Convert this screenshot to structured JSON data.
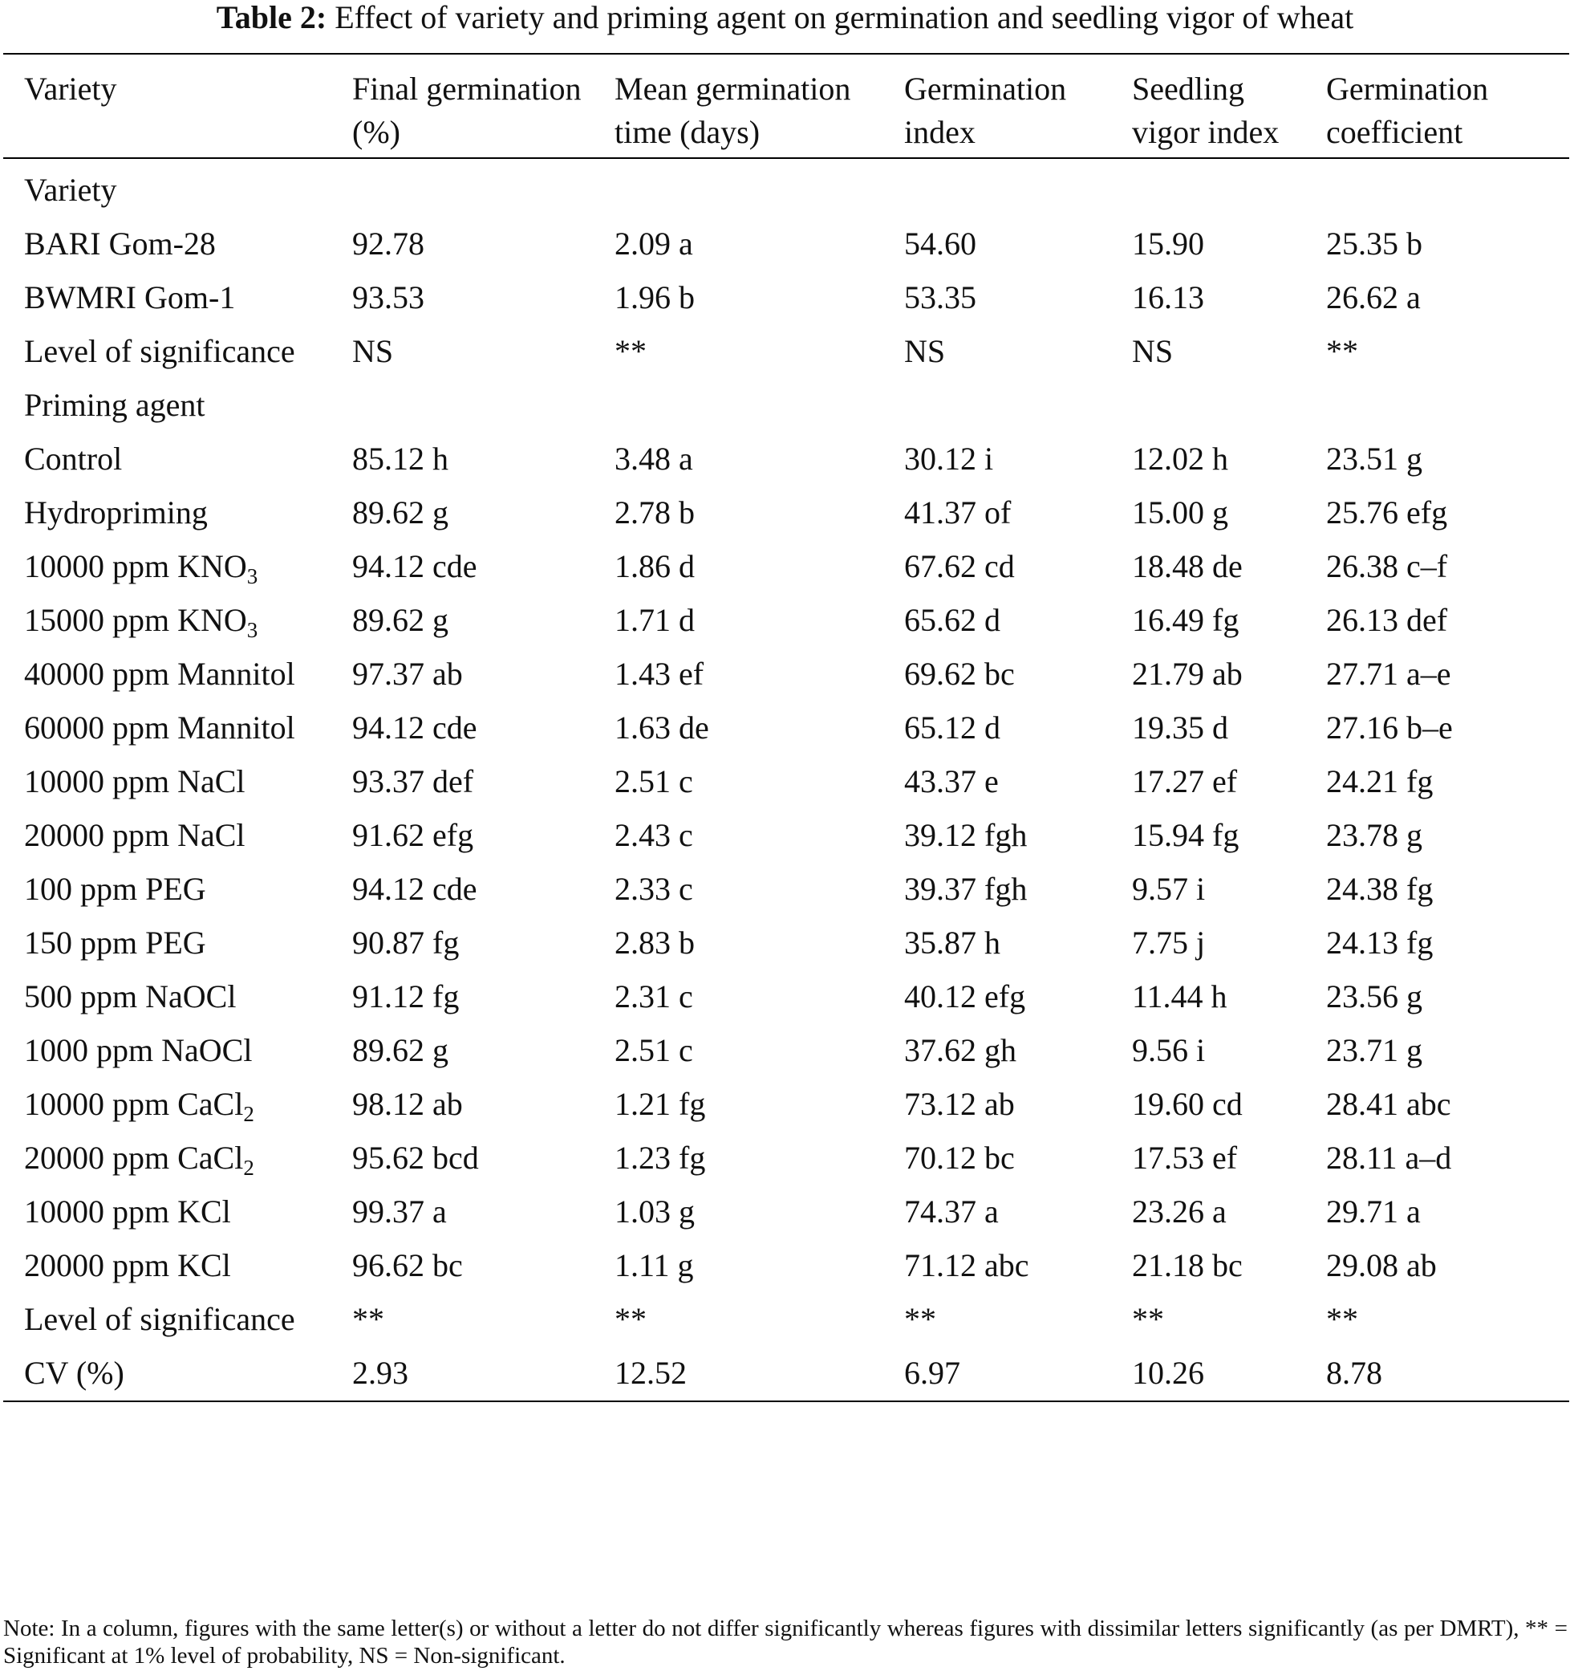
{
  "caption": {
    "label": "Table 2:",
    "text": "Effect of variety and priming agent on germination and seedling vigor of wheat"
  },
  "headers": [
    "Variety",
    "Final germination (%)",
    "Mean germination time (days)",
    "Germination index",
    "Seedling vigor index",
    "Germination coefficient"
  ],
  "rows": [
    {
      "label": "Variety",
      "values": [
        "",
        "",
        "",
        "",
        ""
      ]
    },
    {
      "label": "BARI Gom-28",
      "values": [
        "92.78",
        "2.09 a",
        "54.60",
        "15.90",
        "25.35 b"
      ]
    },
    {
      "label": "BWMRI Gom-1",
      "values": [
        "93.53",
        "1.96 b",
        "53.35",
        "16.13",
        "26.62 a"
      ]
    },
    {
      "label": "Level of significance",
      "values": [
        "NS",
        "**",
        "NS",
        "NS",
        "**"
      ]
    },
    {
      "label": "Priming agent",
      "values": [
        "",
        "",
        "",
        "",
        ""
      ]
    },
    {
      "label": "Control",
      "values": [
        "85.12 h",
        "3.48 a",
        "30.12 i",
        "12.02 h",
        "23.51 g"
      ]
    },
    {
      "label": "Hydropriming",
      "values": [
        "89.62 g",
        "2.78 b",
        "41.37 of",
        "15.00 g",
        "25.76 efg"
      ]
    },
    {
      "label": "10000 ppm KNO",
      "sub": "3",
      "values": [
        "94.12 cde",
        "1.86 d",
        "67.62 cd",
        "18.48 de",
        "26.38 c–f"
      ]
    },
    {
      "label": "15000 ppm KNO",
      "sub": "3",
      "values": [
        "89.62 g",
        "1.71 d",
        "65.62 d",
        "16.49 fg",
        "26.13 def"
      ]
    },
    {
      "label": "40000 ppm Mannitol",
      "values": [
        "97.37 ab",
        "1.43 ef",
        "69.62 bc",
        "21.79 ab",
        "27.71 a–e"
      ]
    },
    {
      "label": "60000 ppm Mannitol",
      "values": [
        "94.12 cde",
        "1.63 de",
        "65.12 d",
        "19.35 d",
        "27.16 b–e"
      ]
    },
    {
      "label": "10000 ppm NaCl",
      "values": [
        "93.37 def",
        "2.51 c",
        "43.37 e",
        "17.27 ef",
        "24.21 fg"
      ]
    },
    {
      "label": "20000 ppm NaCl",
      "values": [
        "91.62 efg",
        "2.43 c",
        "39.12 fgh",
        "15.94 fg",
        "23.78 g"
      ]
    },
    {
      "label": "100 ppm PEG",
      "values": [
        "94.12 cde",
        "2.33 c",
        "39.37 fgh",
        "9.57 i",
        "24.38 fg"
      ]
    },
    {
      "label": "150 ppm PEG",
      "values": [
        "90.87 fg",
        "2.83 b",
        "35.87 h",
        "7.75 j",
        "24.13 fg"
      ]
    },
    {
      "label": "500 ppm NaOCl",
      "values": [
        "91.12 fg",
        "2.31 c",
        "40.12 efg",
        "11.44 h",
        "23.56 g"
      ]
    },
    {
      "label": "1000 ppm NaOCl",
      "values": [
        "89.62 g",
        "2.51 c",
        "37.62 gh",
        "9.56 i",
        "23.71 g"
      ]
    },
    {
      "label": "10000 ppm CaCl",
      "sub": "2",
      "values": [
        "98.12 ab",
        "1.21 fg",
        "73.12 ab",
        "19.60 cd",
        "28.41 abc"
      ]
    },
    {
      "label": "20000 ppm CaCl",
      "sub": "2",
      "values": [
        "95.62 bcd",
        "1.23 fg",
        "70.12 bc",
        "17.53 ef",
        "28.11 a–d"
      ]
    },
    {
      "label": "10000 ppm KCl",
      "values": [
        "99.37 a",
        "1.03 g",
        "74.37 a",
        "23.26 a",
        "29.71 a"
      ]
    },
    {
      "label": "20000 ppm KCl",
      "values": [
        "96.62 bc",
        "1.11 g",
        "71.12 abc",
        "21.18 bc",
        "29.08 ab"
      ]
    },
    {
      "label": "Level of significance",
      "values": [
        "**",
        "**",
        "**",
        "**",
        "**"
      ]
    },
    {
      "label": "CV (%)",
      "values": [
        "2.93",
        "12.52",
        "6.97",
        "10.26",
        "8.78"
      ]
    }
  ],
  "note": "Note: In a column, figures with the same letter(s) or without a letter do not differ significantly whereas figures with dissimilar letters significantly (as per DMRT), ** = Significant at 1% level of probability, NS = Non-significant."
}
